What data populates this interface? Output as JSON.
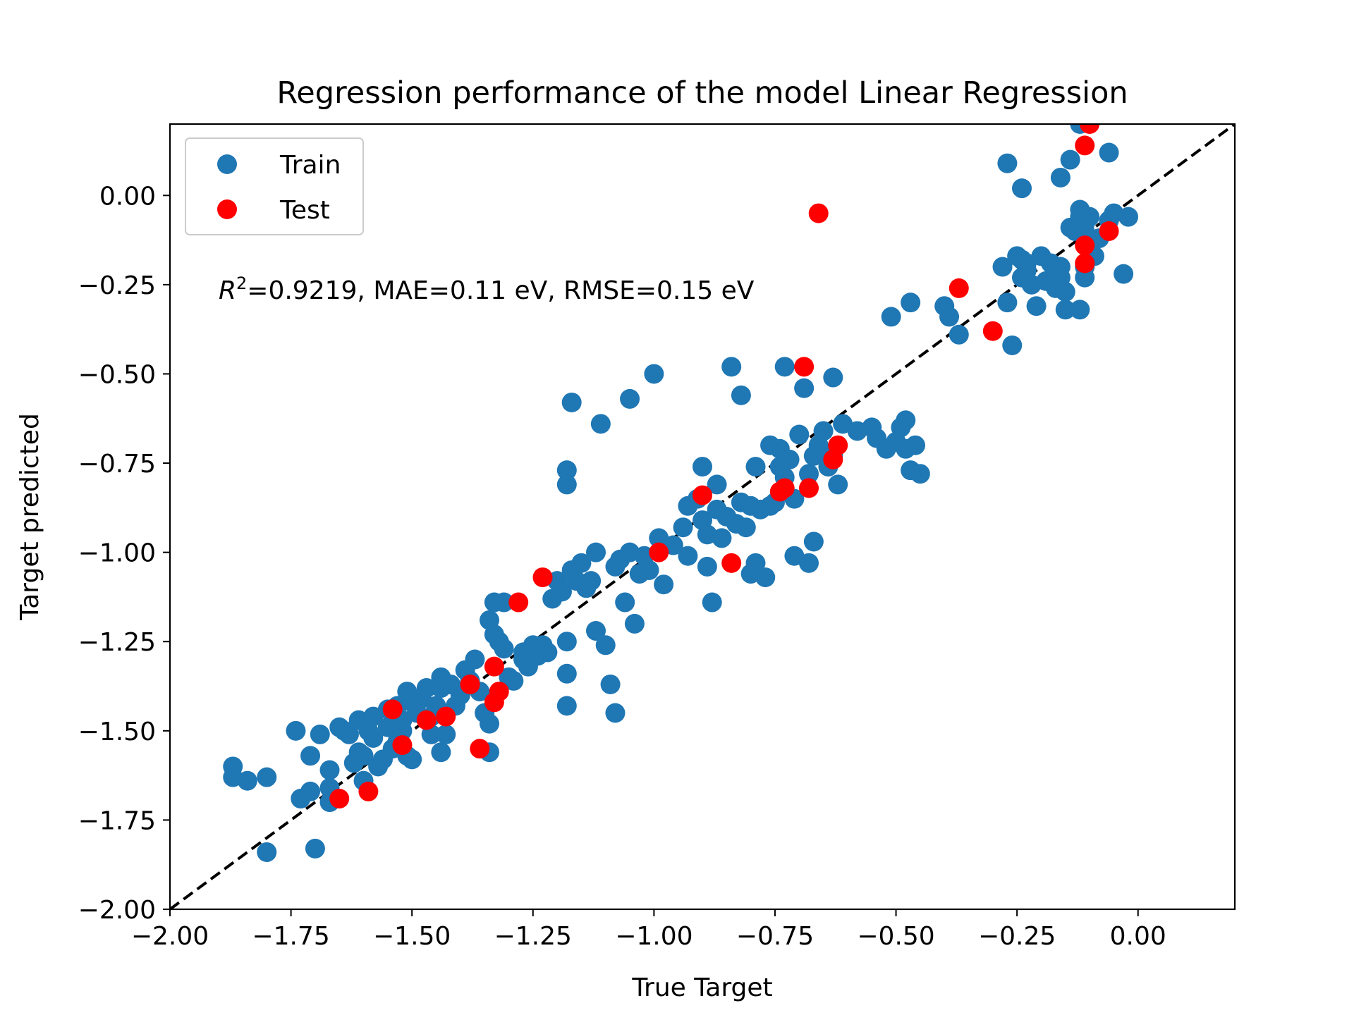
{
  "chart_data": {
    "type": "scatter",
    "title": "Regression performance of the model Linear Regression",
    "xlabel": "True Target",
    "ylabel": "Target predicted",
    "xlim": [
      -2.0,
      0.2
    ],
    "ylim": [
      -2.0,
      0.2
    ],
    "xticks": [
      -2.0,
      -1.75,
      -1.5,
      -1.25,
      -1.0,
      -0.75,
      -0.5,
      -0.25,
      0.0
    ],
    "xtick_labels": [
      "−2.00",
      "−1.75",
      "−1.50",
      "−1.25",
      "−1.00",
      "−0.75",
      "−0.50",
      "−0.25",
      "0.00"
    ],
    "yticks": [
      -2.0,
      -1.75,
      -1.5,
      -1.25,
      -1.0,
      -0.75,
      -0.5,
      -0.25,
      0.0
    ],
    "ytick_labels": [
      "−2.00",
      "−1.75",
      "−1.50",
      "−1.25",
      "−1.00",
      "−0.75",
      "−0.50",
      "−0.25",
      "0.00"
    ],
    "grid": false,
    "legend_position": "top-left",
    "annotation": {
      "r2_symbol": "R",
      "r2_exponent": "2",
      "text": "=0.9219, MAE=0.11 eV, RMSE=0.15 eV"
    },
    "reference_line": {
      "label": "y = x",
      "style": "dashed",
      "color": "#000000"
    },
    "series": [
      {
        "name": "Train",
        "color": "#1f77b4",
        "points": [
          [
            -1.87,
            -1.6
          ],
          [
            -1.87,
            -1.63
          ],
          [
            -1.84,
            -1.64
          ],
          [
            -1.8,
            -1.63
          ],
          [
            -1.8,
            -1.84
          ],
          [
            -1.74,
            -1.5
          ],
          [
            -1.73,
            -1.69
          ],
          [
            -1.71,
            -1.67
          ],
          [
            -1.71,
            -1.57
          ],
          [
            -1.7,
            -1.83
          ],
          [
            -1.69,
            -1.51
          ],
          [
            -1.67,
            -1.61
          ],
          [
            -1.67,
            -1.66
          ],
          [
            -1.67,
            -1.7
          ],
          [
            -1.65,
            -1.49
          ],
          [
            -1.64,
            -1.5
          ],
          [
            -1.63,
            -1.51
          ],
          [
            -1.62,
            -1.59
          ],
          [
            -1.61,
            -1.56
          ],
          [
            -1.61,
            -1.47
          ],
          [
            -1.6,
            -1.57
          ],
          [
            -1.6,
            -1.64
          ],
          [
            -1.59,
            -1.5
          ],
          [
            -1.58,
            -1.46
          ],
          [
            -1.57,
            -1.6
          ],
          [
            -1.56,
            -1.58
          ],
          [
            -1.55,
            -1.44
          ],
          [
            -1.55,
            -1.49
          ],
          [
            -1.54,
            -1.55
          ],
          [
            -1.53,
            -1.53
          ],
          [
            -1.53,
            -1.43
          ],
          [
            -1.52,
            -1.47
          ],
          [
            -1.52,
            -1.5
          ],
          [
            -1.51,
            -1.39
          ],
          [
            -1.51,
            -1.57
          ],
          [
            -1.5,
            -1.58
          ],
          [
            -1.5,
            -1.42
          ],
          [
            -1.49,
            -1.45
          ],
          [
            -1.48,
            -1.41
          ],
          [
            -1.47,
            -1.38
          ],
          [
            -1.46,
            -1.51
          ],
          [
            -1.46,
            -1.46
          ],
          [
            -1.45,
            -1.43
          ],
          [
            -1.44,
            -1.35
          ],
          [
            -1.44,
            -1.56
          ],
          [
            -1.43,
            -1.51
          ],
          [
            -1.42,
            -1.37
          ],
          [
            -1.41,
            -1.43
          ],
          [
            -1.4,
            -1.4
          ],
          [
            -1.39,
            -1.33
          ],
          [
            -1.38,
            -1.36
          ],
          [
            -1.37,
            -1.3
          ],
          [
            -1.36,
            -1.39
          ],
          [
            -1.35,
            -1.45
          ],
          [
            -1.34,
            -1.19
          ],
          [
            -1.34,
            -1.48
          ],
          [
            -1.34,
            -1.56
          ],
          [
            -1.33,
            -1.14
          ],
          [
            -1.33,
            -1.23
          ],
          [
            -1.32,
            -1.25
          ],
          [
            -1.31,
            -1.14
          ],
          [
            -1.31,
            -1.27
          ],
          [
            -1.3,
            -1.35
          ],
          [
            -1.29,
            -1.36
          ],
          [
            -1.27,
            -1.3
          ],
          [
            -1.26,
            -1.32
          ],
          [
            -1.25,
            -1.26
          ],
          [
            -1.24,
            -1.29
          ],
          [
            -1.23,
            -1.26
          ],
          [
            -1.22,
            -1.28
          ],
          [
            -1.21,
            -1.13
          ],
          [
            -1.2,
            -1.08
          ],
          [
            -1.19,
            -1.11
          ],
          [
            -1.18,
            -1.25
          ],
          [
            -1.18,
            -1.34
          ],
          [
            -1.18,
            -1.43
          ],
          [
            -1.18,
            -0.77
          ],
          [
            -1.18,
            -0.81
          ],
          [
            -1.17,
            -0.58
          ],
          [
            -1.17,
            -1.05
          ],
          [
            -1.16,
            -1.08
          ],
          [
            -1.15,
            -1.03
          ],
          [
            -1.14,
            -1.1
          ],
          [
            -1.13,
            -1.08
          ],
          [
            -1.12,
            -1.22
          ],
          [
            -1.12,
            -1.0
          ],
          [
            -1.11,
            -0.64
          ],
          [
            -1.1,
            -1.26
          ],
          [
            -1.09,
            -1.37
          ],
          [
            -1.08,
            -1.04
          ],
          [
            -1.08,
            -1.45
          ],
          [
            -1.07,
            -1.02
          ],
          [
            -1.06,
            -1.14
          ],
          [
            -1.05,
            -0.57
          ],
          [
            -1.05,
            -1.0
          ],
          [
            -1.04,
            -1.2
          ],
          [
            -1.03,
            -1.06
          ],
          [
            -1.02,
            -1.01
          ],
          [
            -1.01,
            -1.05
          ],
          [
            -1.0,
            -0.5
          ],
          [
            -0.99,
            -0.96
          ],
          [
            -0.98,
            -1.09
          ],
          [
            -0.94,
            -0.93
          ],
          [
            -0.93,
            -1.01
          ],
          [
            -0.93,
            -0.87
          ],
          [
            -0.91,
            -0.85
          ],
          [
            -0.9,
            -0.91
          ],
          [
            -0.9,
            -0.76
          ],
          [
            -0.89,
            -0.95
          ],
          [
            -0.89,
            -1.04
          ],
          [
            -0.88,
            -1.14
          ],
          [
            -0.87,
            -0.81
          ],
          [
            -0.86,
            -0.96
          ],
          [
            -0.85,
            -0.9
          ],
          [
            -0.84,
            -0.48
          ],
          [
            -0.83,
            -0.92
          ],
          [
            -0.82,
            -0.56
          ],
          [
            -0.82,
            -0.86
          ],
          [
            -0.81,
            -0.93
          ],
          [
            -0.8,
            -0.87
          ],
          [
            -0.8,
            -1.06
          ],
          [
            -0.79,
            -0.76
          ],
          [
            -0.79,
            -1.03
          ],
          [
            -0.78,
            -0.88
          ],
          [
            -0.77,
            -1.07
          ],
          [
            -0.76,
            -0.7
          ],
          [
            -0.76,
            -0.87
          ],
          [
            -0.75,
            -0.86
          ],
          [
            -0.74,
            -0.71
          ],
          [
            -0.73,
            -0.48
          ],
          [
            -0.73,
            -0.79
          ],
          [
            -0.72,
            -0.74
          ],
          [
            -0.71,
            -0.85
          ],
          [
            -0.71,
            -1.01
          ],
          [
            -0.7,
            -0.67
          ],
          [
            -0.69,
            -0.54
          ],
          [
            -0.68,
            -0.78
          ],
          [
            -0.68,
            -1.03
          ],
          [
            -0.67,
            -0.97
          ],
          [
            -0.67,
            -0.73
          ],
          [
            -0.66,
            -0.7
          ],
          [
            -0.65,
            -0.66
          ],
          [
            -0.64,
            -0.76
          ],
          [
            -0.63,
            -0.51
          ],
          [
            -0.63,
            -0.73
          ],
          [
            -0.62,
            -0.81
          ],
          [
            -0.61,
            -0.64
          ],
          [
            -0.55,
            -0.65
          ],
          [
            -0.54,
            -0.68
          ],
          [
            -0.52,
            -0.71
          ],
          [
            -0.51,
            -0.34
          ],
          [
            -0.5,
            -0.69
          ],
          [
            -0.49,
            -0.65
          ],
          [
            -0.48,
            -0.63
          ],
          [
            -0.48,
            -0.71
          ],
          [
            -0.47,
            -0.77
          ],
          [
            -0.47,
            -0.3
          ],
          [
            -0.46,
            -0.7
          ],
          [
            -0.45,
            -0.78
          ],
          [
            -0.4,
            -0.31
          ],
          [
            -0.39,
            -0.34
          ],
          [
            -0.37,
            -0.39
          ],
          [
            -0.27,
            -0.3
          ],
          [
            -0.26,
            -0.42
          ],
          [
            -0.25,
            -0.17
          ],
          [
            -0.24,
            -0.18
          ],
          [
            -0.24,
            -0.23
          ],
          [
            -0.23,
            -0.19
          ],
          [
            -0.22,
            -0.25
          ],
          [
            -0.21,
            -0.31
          ],
          [
            -0.2,
            -0.17
          ],
          [
            -0.19,
            -0.24
          ],
          [
            -0.18,
            -0.19
          ],
          [
            -0.17,
            -0.26
          ],
          [
            -0.16,
            -0.23
          ],
          [
            -0.15,
            -0.27
          ],
          [
            -0.15,
            -0.32
          ],
          [
            -0.14,
            -0.09
          ],
          [
            -0.13,
            -0.1
          ],
          [
            -0.12,
            -0.04
          ],
          [
            -0.12,
            -0.06
          ],
          [
            -0.11,
            -0.08
          ],
          [
            -0.11,
            -0.1
          ],
          [
            -0.1,
            -0.06
          ],
          [
            -0.09,
            -0.17
          ],
          [
            -0.08,
            -0.12
          ],
          [
            -0.06,
            -0.07
          ],
          [
            -0.05,
            -0.05
          ],
          [
            -0.03,
            -0.22
          ],
          [
            -0.02,
            -0.06
          ],
          [
            -0.27,
            0.09
          ],
          [
            -0.24,
            0.02
          ],
          [
            -0.16,
            0.05
          ],
          [
            -0.14,
            0.1
          ],
          [
            -0.06,
            0.12
          ],
          [
            -0.12,
            0.2
          ],
          [
            -0.11,
            -0.2
          ],
          [
            -0.11,
            -0.23
          ],
          [
            -0.12,
            -0.32
          ],
          [
            -0.16,
            -0.2
          ],
          [
            -0.23,
            -0.21
          ],
          [
            -0.28,
            -0.2
          ],
          [
            -0.96,
            -0.98
          ],
          [
            -1.27,
            -1.28
          ],
          [
            -1.44,
            -1.38
          ],
          [
            -1.58,
            -1.52
          ],
          [
            -0.58,
            -0.66
          ],
          [
            -0.87,
            -0.88
          ],
          [
            -0.74,
            -0.76
          ]
        ]
      },
      {
        "name": "Test",
        "color": "#ff0000",
        "points": [
          [
            -1.65,
            -1.69
          ],
          [
            -1.59,
            -1.67
          ],
          [
            -1.54,
            -1.44
          ],
          [
            -1.52,
            -1.54
          ],
          [
            -1.47,
            -1.47
          ],
          [
            -1.43,
            -1.46
          ],
          [
            -1.38,
            -1.37
          ],
          [
            -1.36,
            -1.55
          ],
          [
            -1.33,
            -1.32
          ],
          [
            -1.33,
            -1.42
          ],
          [
            -1.32,
            -1.39
          ],
          [
            -1.28,
            -1.14
          ],
          [
            -1.23,
            -1.07
          ],
          [
            -0.99,
            -1.0
          ],
          [
            -0.9,
            -0.84
          ],
          [
            -0.84,
            -1.03
          ],
          [
            -0.74,
            -0.83
          ],
          [
            -0.73,
            -0.82
          ],
          [
            -0.69,
            -0.48
          ],
          [
            -0.68,
            -0.82
          ],
          [
            -0.63,
            -0.74
          ],
          [
            -0.62,
            -0.7
          ],
          [
            -0.66,
            -0.05
          ],
          [
            -0.37,
            -0.26
          ],
          [
            -0.3,
            -0.38
          ],
          [
            -0.11,
            -0.14
          ],
          [
            -0.11,
            -0.19
          ],
          [
            -0.06,
            -0.1
          ],
          [
            -0.11,
            0.14
          ],
          [
            -0.1,
            0.2
          ]
        ]
      }
    ]
  }
}
